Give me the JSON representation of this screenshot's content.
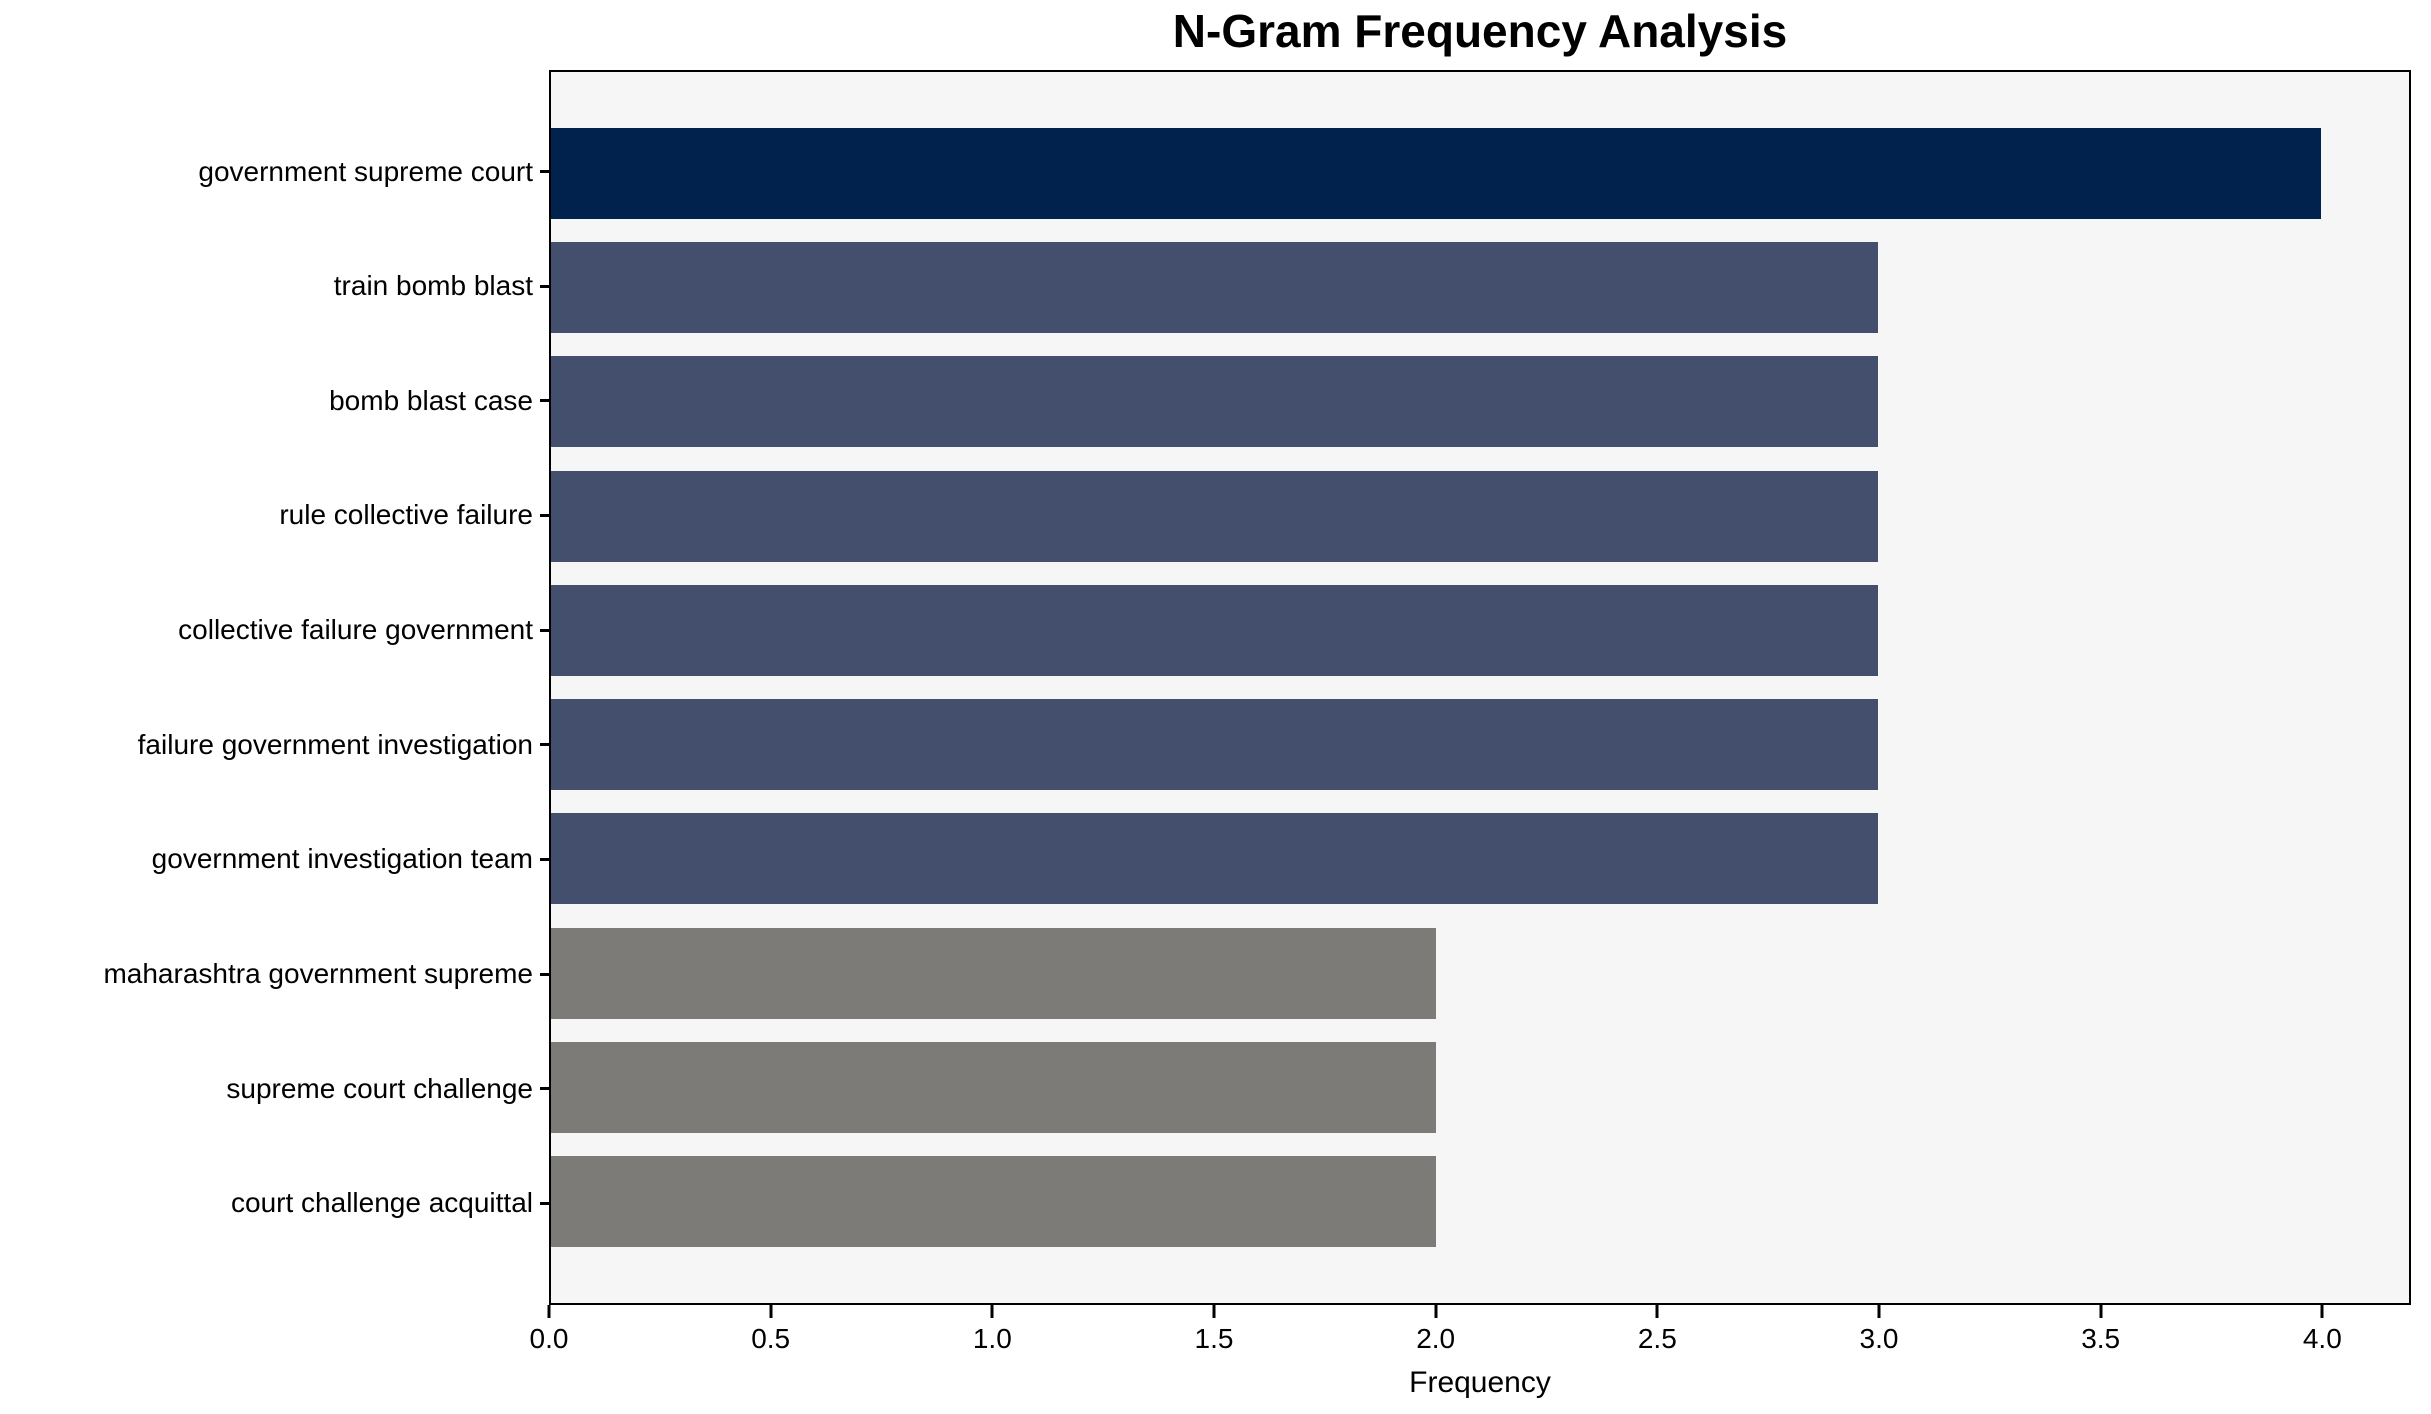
{
  "chart_data": {
    "type": "bar",
    "orientation": "horizontal",
    "title": "N-Gram Frequency Analysis",
    "xlabel": "Frequency",
    "ylabel": "",
    "categories": [
      "government supreme court",
      "train bomb blast",
      "bomb blast case",
      "rule collective failure",
      "collective failure government",
      "failure government investigation",
      "government investigation team",
      "maharashtra government supreme",
      "supreme court challenge",
      "court challenge acquittal"
    ],
    "values": [
      4,
      3,
      3,
      3,
      3,
      3,
      3,
      2,
      2,
      2
    ],
    "bar_colors": [
      "#01224d",
      "#444f6d",
      "#444f6d",
      "#444f6d",
      "#444f6d",
      "#444f6d",
      "#444f6d",
      "#7c7b77",
      "#7c7b77",
      "#7c7b77"
    ],
    "xlim": [
      0,
      4.2
    ],
    "xticks": [
      0.0,
      0.5,
      1.0,
      1.5,
      2.0,
      2.5,
      3.0,
      3.5,
      4.0
    ],
    "xtick_labels": [
      "0.0",
      "0.5",
      "1.0",
      "1.5",
      "2.0",
      "2.5",
      "3.0",
      "3.5",
      "4.0"
    ],
    "grid": false,
    "legend": null,
    "bar_height_fraction": 0.8,
    "plot_background": "#f6f6f6",
    "figure_background": "#ffffff",
    "spine_color": "#000000"
  }
}
